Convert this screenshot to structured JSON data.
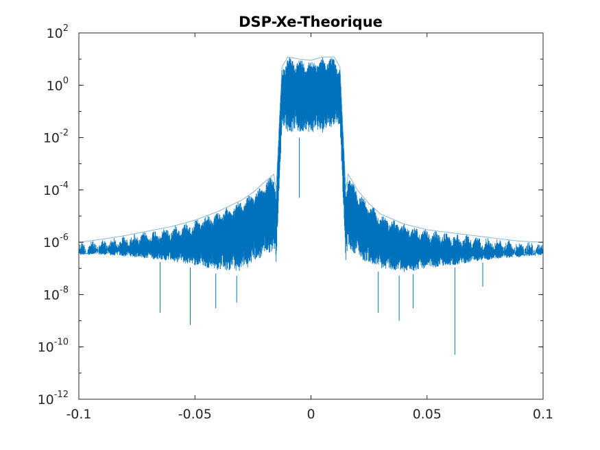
{
  "chart_data": {
    "type": "line",
    "title": "DSP-Xe-Theorique",
    "xlabel": "",
    "ylabel": "",
    "xlim": [
      -0.1,
      0.1
    ],
    "ylim": [
      1e-12,
      100
    ],
    "yscale": "log",
    "grid": false,
    "x_ticks": [
      -0.1,
      -0.05,
      0,
      0.05,
      0.1
    ],
    "x_tick_labels": [
      "-0.1",
      "-0.05",
      "0",
      "0.05",
      "0.1"
    ],
    "y_ticks": [
      1e-12,
      1e-10,
      1e-08,
      1e-06,
      0.0001,
      0.01,
      1,
      100
    ],
    "y_tick_labels": [
      {
        "base": "10",
        "exp": "-12"
      },
      {
        "base": "10",
        "exp": "-10"
      },
      {
        "base": "10",
        "exp": "-8"
      },
      {
        "base": "10",
        "exp": "-6"
      },
      {
        "base": "10",
        "exp": "-4"
      },
      {
        "base": "10",
        "exp": "-2"
      },
      {
        "base": "10",
        "exp": "0"
      },
      {
        "base": "10",
        "exp": "2"
      }
    ],
    "series": [
      {
        "color": "#0072BD",
        "envelope": {
          "x": [
            -0.1,
            -0.09,
            -0.08,
            -0.07,
            -0.06,
            -0.05,
            -0.04,
            -0.03,
            -0.025,
            -0.02,
            -0.016,
            -0.015,
            -0.0125,
            -0.01,
            -0.005,
            0,
            0.005,
            0.01,
            0.0125,
            0.015,
            0.016,
            0.02,
            0.025,
            0.03,
            0.04,
            0.05,
            0.06,
            0.07,
            0.08,
            0.09,
            0.1
          ],
          "y_max": [
            1e-06,
            1.3e-06,
            1.8e-06,
            2.7e-06,
            4e-06,
            7e-06,
            1.5e-05,
            4e-05,
            8e-05,
            0.0002,
            0.0004,
            0.0001,
            5,
            12,
            10,
            9,
            12,
            12,
            5,
            0.0001,
            0.0004,
            0.0001,
            3e-05,
            1.2e-05,
            5e-06,
            3e-06,
            2.3e-06,
            1.8e-06,
            1.4e-06,
            1.1e-06,
            1e-06
          ],
          "y_min": [
            3e-07,
            3e-07,
            2.5e-07,
            2e-07,
            1.5e-07,
            1e-07,
            6e-08,
            5e-08,
            1e-07,
            2e-07,
            3e-07,
            1e-07,
            0.02,
            0.01,
            0.01,
            0.01,
            0.01,
            0.02,
            0.02,
            1e-07,
            4e-07,
            2e-07,
            1e-07,
            7e-08,
            5e-08,
            8e-08,
            1e-07,
            1.5e-07,
            2e-07,
            2.5e-07,
            3e-07
          ]
        },
        "deep_dips": [
          {
            "x": -0.065,
            "y": 2e-09
          },
          {
            "x": -0.052,
            "y": 7e-10
          },
          {
            "x": -0.041,
            "y": 3e-09
          },
          {
            "x": -0.032,
            "y": 5e-09
          },
          {
            "x": -0.005,
            "y": 5e-05
          },
          {
            "x": 0.029,
            "y": 2e-09
          },
          {
            "x": 0.038,
            "y": 1e-09
          },
          {
            "x": 0.044,
            "y": 3e-09
          },
          {
            "x": 0.062,
            "y": 5e-11
          },
          {
            "x": 0.074,
            "y": 2e-08
          }
        ]
      }
    ]
  }
}
